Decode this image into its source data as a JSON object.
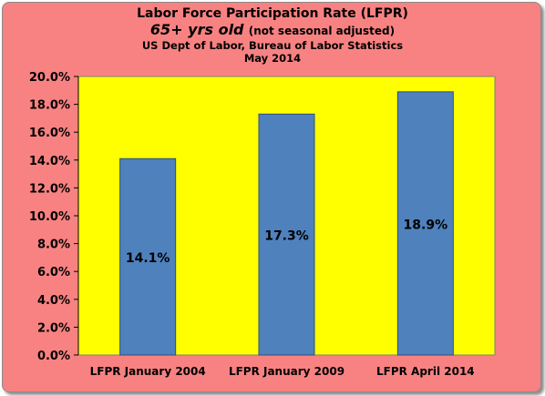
{
  "colors": {
    "frame_bg": "#f88282",
    "plot_bg": "#ffff00",
    "bar_fill": "#4f81bd",
    "bar_stroke": "#2f4f7a"
  },
  "chart_data": {
    "type": "bar",
    "title_line1": "Labor Force Participation Rate (LFPR)",
    "title_line2_main": "65+ yrs old",
    "title_line2_note": "(not seasonal adjusted)",
    "subtitle": "US Dept of Labor, Bureau of Labor Statistics",
    "date": "May 2014",
    "categories": [
      "LFPR January 2004",
      "LFPR January 2009",
      "LFPR April 2014"
    ],
    "values": [
      14.1,
      17.3,
      18.9
    ],
    "data_labels": [
      "14.1%",
      "17.3%",
      "18.9%"
    ],
    "ylim": [
      0,
      20
    ],
    "yticks": [
      0,
      2,
      4,
      6,
      8,
      10,
      12,
      14,
      16,
      18,
      20
    ],
    "ytick_labels": [
      "0.0%",
      "2.0%",
      "4.0%",
      "6.0%",
      "8.0%",
      "10.0%",
      "12.0%",
      "14.0%",
      "16.0%",
      "18.0%",
      "20.0%"
    ],
    "grid": false,
    "legend": "none"
  }
}
